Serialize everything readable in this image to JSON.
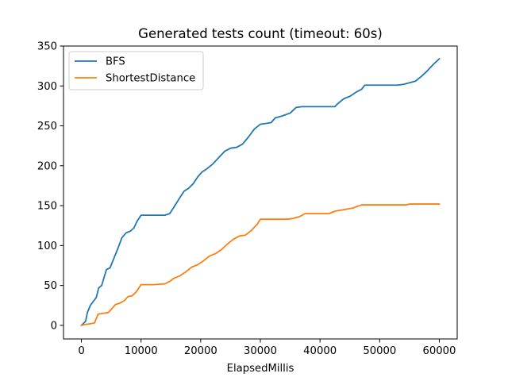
{
  "chart_data": {
    "type": "line",
    "title": "Generated tests count (timeout: 60s)",
    "xlabel": "ElapsedMillis",
    "ylabel": "",
    "xlim": [
      -3000,
      63000
    ],
    "ylim": [
      -17,
      350
    ],
    "xticks": [
      0,
      10000,
      20000,
      30000,
      40000,
      50000,
      60000
    ],
    "yticks": [
      0,
      50,
      100,
      150,
      200,
      250,
      300,
      350
    ],
    "grid": false,
    "legend": "top-left",
    "series": [
      {
        "name": "BFS",
        "color": "#1f77b4",
        "points": [
          [
            0,
            0
          ],
          [
            700,
            5
          ],
          [
            1000,
            16
          ],
          [
            1500,
            25
          ],
          [
            2000,
            30
          ],
          [
            2500,
            35
          ],
          [
            2900,
            47
          ],
          [
            3400,
            50
          ],
          [
            3800,
            60
          ],
          [
            4200,
            70
          ],
          [
            4800,
            72
          ],
          [
            5500,
            85
          ],
          [
            6200,
            98
          ],
          [
            6800,
            110
          ],
          [
            7500,
            116
          ],
          [
            8200,
            118
          ],
          [
            8800,
            122
          ],
          [
            9300,
            130
          ],
          [
            10000,
            138
          ],
          [
            12000,
            138
          ],
          [
            14000,
            138
          ],
          [
            14800,
            140
          ],
          [
            15500,
            148
          ],
          [
            16500,
            160
          ],
          [
            17200,
            168
          ],
          [
            18000,
            172
          ],
          [
            18800,
            178
          ],
          [
            19500,
            186
          ],
          [
            20200,
            192
          ],
          [
            21000,
            196
          ],
          [
            22000,
            202
          ],
          [
            23000,
            210
          ],
          [
            24000,
            218
          ],
          [
            25000,
            222
          ],
          [
            26000,
            223
          ],
          [
            27000,
            227
          ],
          [
            28000,
            236
          ],
          [
            29000,
            246
          ],
          [
            30000,
            252
          ],
          [
            31000,
            253
          ],
          [
            31800,
            254
          ],
          [
            32500,
            260
          ],
          [
            33500,
            262
          ],
          [
            35000,
            266
          ],
          [
            36000,
            273
          ],
          [
            37000,
            274
          ],
          [
            40000,
            274
          ],
          [
            42500,
            274
          ],
          [
            43000,
            278
          ],
          [
            44000,
            284
          ],
          [
            45000,
            287
          ],
          [
            46000,
            292
          ],
          [
            47000,
            296
          ],
          [
            47500,
            301
          ],
          [
            50000,
            301
          ],
          [
            53000,
            301
          ],
          [
            54000,
            302
          ],
          [
            55000,
            304
          ],
          [
            56000,
            306
          ],
          [
            57000,
            312
          ],
          [
            58000,
            319
          ],
          [
            59000,
            327
          ],
          [
            60000,
            334
          ]
        ]
      },
      {
        "name": "ShortestDistance",
        "color": "#ff7f0e",
        "points": [
          [
            0,
            0
          ],
          [
            500,
            1
          ],
          [
            1500,
            2
          ],
          [
            2200,
            3
          ],
          [
            2800,
            14
          ],
          [
            3500,
            15
          ],
          [
            4500,
            16
          ],
          [
            5000,
            20
          ],
          [
            5700,
            26
          ],
          [
            6500,
            28
          ],
          [
            7200,
            31
          ],
          [
            7800,
            36
          ],
          [
            8500,
            37
          ],
          [
            9200,
            42
          ],
          [
            10000,
            51
          ],
          [
            12000,
            51
          ],
          [
            14000,
            52
          ],
          [
            14800,
            55
          ],
          [
            15500,
            59
          ],
          [
            16500,
            62
          ],
          [
            17500,
            67
          ],
          [
            18500,
            73
          ],
          [
            19500,
            76
          ],
          [
            20500,
            81
          ],
          [
            21500,
            87
          ],
          [
            22500,
            90
          ],
          [
            23500,
            95
          ],
          [
            24500,
            102
          ],
          [
            25500,
            108
          ],
          [
            26500,
            112
          ],
          [
            27500,
            113
          ],
          [
            28500,
            119
          ],
          [
            29500,
            127
          ],
          [
            30000,
            133
          ],
          [
            31000,
            133
          ],
          [
            33000,
            133
          ],
          [
            34500,
            133
          ],
          [
            35500,
            134
          ],
          [
            36500,
            136
          ],
          [
            37500,
            140
          ],
          [
            40000,
            140
          ],
          [
            41500,
            140
          ],
          [
            42500,
            143
          ],
          [
            44000,
            145
          ],
          [
            45500,
            147
          ],
          [
            47000,
            151
          ],
          [
            50000,
            151
          ],
          [
            53000,
            151
          ],
          [
            54500,
            151
          ],
          [
            55000,
            152
          ],
          [
            60000,
            152
          ]
        ]
      }
    ]
  }
}
